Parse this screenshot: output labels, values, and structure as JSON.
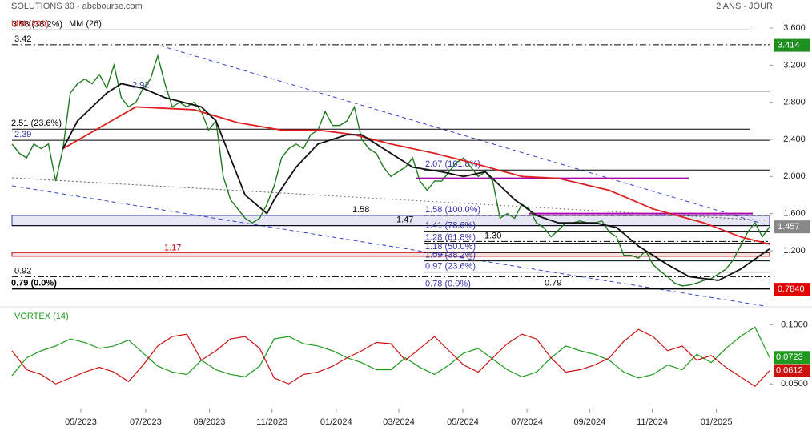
{
  "chart_data": {
    "type": "stock",
    "header": {
      "title": "SOLUTIONS 30 - abcbourse.com",
      "period": "2 ANS - JOUR"
    },
    "xlim": [
      0,
      104
    ],
    "xticks": [
      {
        "value": 9.45,
        "label": "05/2023"
      },
      {
        "value": 18.35,
        "label": "07/2023"
      },
      {
        "value": 27.1,
        "label": "09/2023"
      },
      {
        "value": 35.7,
        "label": "11/2023"
      },
      {
        "value": 44.5,
        "label": "01/2024"
      },
      {
        "value": 53.1,
        "label": "03/2024"
      },
      {
        "value": 61.9,
        "label": "05/2024"
      },
      {
        "value": 70.7,
        "label": "07/2024"
      },
      {
        "value": 79.3,
        "label": "09/2024"
      },
      {
        "value": 87.9,
        "label": "11/2024"
      },
      {
        "value": 96.7,
        "label": "01/2025"
      }
    ],
    "ylim": [
      0.664,
      3.773
    ],
    "yticks": [
      {
        "value": 3.6,
        "label": "3.600"
      },
      {
        "value": 3.2,
        "label": "3.200"
      },
      {
        "value": 2.8,
        "label": "2.800"
      },
      {
        "value": 2.4,
        "label": "2.400"
      },
      {
        "value": 2.0,
        "label": "2.000"
      },
      {
        "value": 1.6,
        "label": "1.600"
      },
      {
        "value": 1.2,
        "label": "1.200"
      }
    ],
    "price": {
      "color": "#1f7a1f",
      "values": [
        2.35,
        2.25,
        2.2,
        2.35,
        2.3,
        2.35,
        1.95,
        2.3,
        2.9,
        3.0,
        3.05,
        3.0,
        3.1,
        2.95,
        3.2,
        2.85,
        2.75,
        2.8,
        2.95,
        3.05,
        3.3,
        3.0,
        2.75,
        2.8,
        2.75,
        2.8,
        2.7,
        2.5,
        2.6,
        2.0,
        1.75,
        1.65,
        1.55,
        1.5,
        1.55,
        1.7,
        1.9,
        2.2,
        2.3,
        2.35,
        2.3,
        2.45,
        2.5,
        2.7,
        2.55,
        2.55,
        2.6,
        2.75,
        2.4,
        2.3,
        2.25,
        2.1,
        2.0,
        2.05,
        2.1,
        2.2,
        1.95,
        1.85,
        1.95,
        1.95,
        2.05,
        2.15,
        2.2,
        2.1,
        2.0,
        2.05,
        1.95,
        1.55,
        1.6,
        1.55,
        1.7,
        1.65,
        1.5,
        1.45,
        1.35,
        1.42,
        1.5,
        1.5,
        1.52,
        1.5,
        1.5,
        1.52,
        1.4,
        1.35,
        1.15,
        1.15,
        1.12,
        1.2,
        1.05,
        0.98,
        0.92,
        0.85,
        0.82,
        0.83,
        0.85,
        0.88,
        0.9,
        0.95,
        1.0,
        1.1,
        1.25,
        1.4,
        1.5,
        1.35,
        1.457
      ]
    },
    "series": [
      {
        "name": "MM (200)",
        "color": "#e02020",
        "x": [
          7,
          17,
          25,
          31,
          37,
          42,
          47,
          52,
          58,
          63,
          70,
          75,
          82,
          88,
          95,
          100,
          104
        ],
        "values": [
          2.3,
          2.75,
          2.72,
          2.58,
          2.5,
          2.5,
          2.45,
          2.35,
          2.25,
          2.15,
          2.0,
          1.98,
          1.85,
          1.65,
          1.5,
          1.35,
          1.27
        ]
      },
      {
        "name": "MM (26)",
        "color": "#111111",
        "x": [
          7,
          9,
          13,
          15,
          18,
          21,
          26,
          28,
          30,
          32,
          35,
          36,
          39,
          42,
          46,
          48,
          51,
          55,
          59,
          62,
          65,
          69,
          72,
          75,
          80,
          83,
          86,
          90,
          93,
          97,
          100,
          104
        ],
        "values": [
          2.3,
          2.6,
          2.9,
          3.0,
          2.95,
          2.85,
          2.75,
          2.6,
          2.2,
          1.8,
          1.6,
          1.75,
          2.1,
          2.35,
          2.45,
          2.45,
          2.3,
          2.1,
          2.05,
          2.0,
          2.05,
          1.75,
          1.58,
          1.5,
          1.5,
          1.45,
          1.25,
          1.05,
          0.92,
          0.88,
          1.0,
          1.22
        ]
      }
    ],
    "levels": [
      {
        "value": 3.58,
        "label": "3.58 (38.2%)",
        "color": "#000000"
      },
      {
        "value": 3.42,
        "label": "3.42",
        "color": "#000000"
      },
      {
        "value": 2.92,
        "label": "2.92",
        "color": "#3333aa"
      },
      {
        "value": 2.51,
        "label": "2.51 (23.6%)",
        "color": "#000000"
      },
      {
        "value": 2.39,
        "label": "2.39",
        "color": "#3333aa"
      },
      {
        "value": 2.07,
        "label": "2.07 (161.8%)",
        "color": "#3333aa"
      },
      {
        "value": 1.58,
        "label": "1.58",
        "color": "#000000"
      },
      {
        "value": 1.58,
        "label": "1.58 (100.0%)",
        "color": "#3333aa"
      },
      {
        "value": 1.47,
        "label": "1.47",
        "color": "#000000"
      },
      {
        "value": 1.41,
        "label": "1.41 (78.6%)",
        "color": "#3333aa"
      },
      {
        "value": 1.3,
        "label": "1.30",
        "color": "#000000"
      },
      {
        "value": 1.28,
        "label": "1.28 (61.8%)",
        "color": "#3333aa"
      },
      {
        "value": 1.18,
        "label": "1.18 (50.0%)",
        "color": "#3333aa"
      },
      {
        "value": 1.17,
        "label": "1.17",
        "color": "#cc0000"
      },
      {
        "value": 1.09,
        "label": "1.09 (38.2%)",
        "color": "#3333aa"
      },
      {
        "value": 0.97,
        "label": "0.97 (23.6%)",
        "color": "#3333aa"
      },
      {
        "value": 0.92,
        "label": "0.92",
        "color": "#000000"
      },
      {
        "value": 0.79,
        "label": "0.79  (0.0%)",
        "color": "#000000"
      },
      {
        "value": 0.78,
        "label": "0.78 (0.0%)",
        "color": "#3333aa"
      },
      {
        "value": 0.79,
        "label": "0.79",
        "color": "#000000"
      }
    ],
    "zones": [
      {
        "from": 1.47,
        "to": 1.58,
        "color": "#3333aa"
      },
      {
        "from": 1.14,
        "to": 1.18,
        "color": "#cc0000"
      }
    ],
    "resistances": [
      {
        "value": 1.98,
        "color": "#aa00aa"
      },
      {
        "value": 1.6,
        "color": "#aa00aa"
      }
    ],
    "last_values": [
      {
        "value": 3.414,
        "color": "#1f8f1f"
      },
      {
        "value": 1.457,
        "color": "#888888"
      },
      {
        "value": 0.784,
        "label": "0.7840",
        "color": "#e00000"
      }
    ],
    "vortex": {
      "title": "VORTEX (14)",
      "xlim": [
        0,
        52
      ],
      "ylim": [
        0.038,
        0.107
      ],
      "yticks": [
        {
          "value": 0.1,
          "label": "0.1000"
        },
        {
          "value": 0.05,
          "label": "0.0500"
        }
      ],
      "series": [
        {
          "color": "#1f9a1f",
          "values": [
            0.057,
            0.072,
            0.078,
            0.082,
            0.088,
            0.085,
            0.08,
            0.082,
            0.087,
            0.076,
            0.065,
            0.06,
            0.058,
            0.07,
            0.062,
            0.058,
            0.056,
            0.065,
            0.088,
            0.09,
            0.084,
            0.082,
            0.078,
            0.072,
            0.068,
            0.062,
            0.062,
            0.072,
            0.064,
            0.058,
            0.066,
            0.076,
            0.08,
            0.071,
            0.062,
            0.056,
            0.06,
            0.072,
            0.082,
            0.078,
            0.075,
            0.07,
            0.06,
            0.055,
            0.058,
            0.066,
            0.062,
            0.075,
            0.068,
            0.08,
            0.09,
            0.098,
            0.0723
          ],
          "last": 0.0723
        },
        {
          "color": "#cc1111",
          "values": [
            0.078,
            0.062,
            0.058,
            0.05,
            0.055,
            0.06,
            0.064,
            0.06,
            0.052,
            0.066,
            0.082,
            0.09,
            0.092,
            0.07,
            0.078,
            0.088,
            0.09,
            0.08,
            0.055,
            0.05,
            0.058,
            0.06,
            0.065,
            0.072,
            0.078,
            0.085,
            0.084,
            0.07,
            0.08,
            0.09,
            0.078,
            0.066,
            0.06,
            0.072,
            0.084,
            0.092,
            0.088,
            0.072,
            0.06,
            0.062,
            0.066,
            0.072,
            0.086,
            0.096,
            0.09,
            0.078,
            0.082,
            0.07,
            0.074,
            0.064,
            0.056,
            0.048,
            0.0612
          ],
          "last": 0.0612
        }
      ]
    }
  }
}
